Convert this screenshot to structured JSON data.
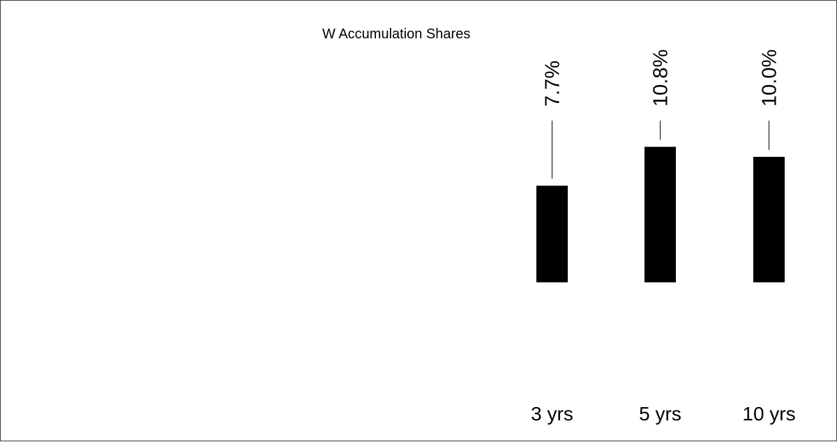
{
  "chart_data": {
    "type": "bar",
    "series_name": "W Accumulation Shares",
    "categories": [
      "3 yrs",
      "5 yrs",
      "10 yrs"
    ],
    "values": [
      7.7,
      10.8,
      10.0
    ],
    "value_labels": [
      "7.7%",
      "10.8%",
      "10.0%"
    ],
    "unit": "%",
    "ylim": [
      0,
      12
    ],
    "grid": false,
    "legend": "none",
    "bar_color": "#000000"
  }
}
